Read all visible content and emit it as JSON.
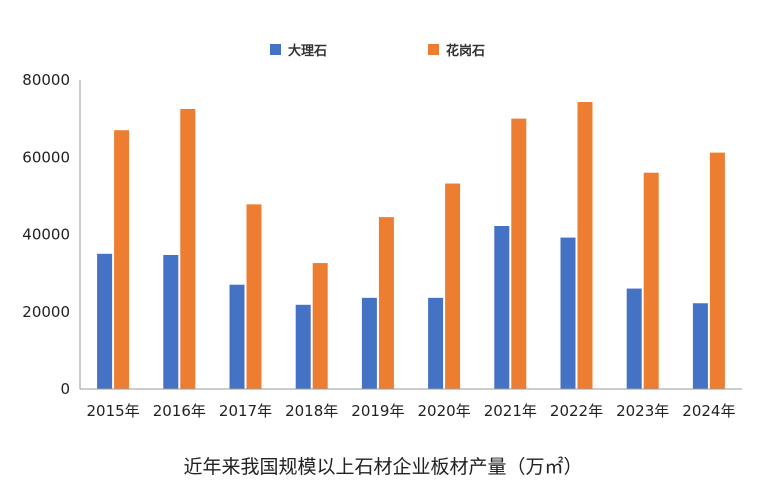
{
  "chart_data": {
    "type": "bar",
    "title": "",
    "caption": "近年来我国规模以上石材企业板材产量（万㎡）",
    "categories": [
      "2015年",
      "2016年",
      "2017年",
      "2018年",
      "2019年",
      "2020年",
      "2021年",
      "2022年",
      "2023年",
      "2024年"
    ],
    "series": [
      {
        "name": "大理石",
        "color": "#4472C4",
        "values": [
          35000,
          34700,
          27000,
          21800,
          23600,
          23600,
          42200,
          39200,
          26000,
          22200
        ]
      },
      {
        "name": "花岗石",
        "color": "#ED7D31",
        "values": [
          67000,
          72500,
          47800,
          32600,
          44500,
          53200,
          70000,
          74300,
          56000,
          61200
        ]
      }
    ],
    "ylim": [
      0,
      80000
    ],
    "yticks": [
      "0",
      "20000",
      "40000",
      "60000",
      "80000"
    ],
    "xlabel": "",
    "ylabel": "",
    "grid": false,
    "legend_position": "top"
  }
}
